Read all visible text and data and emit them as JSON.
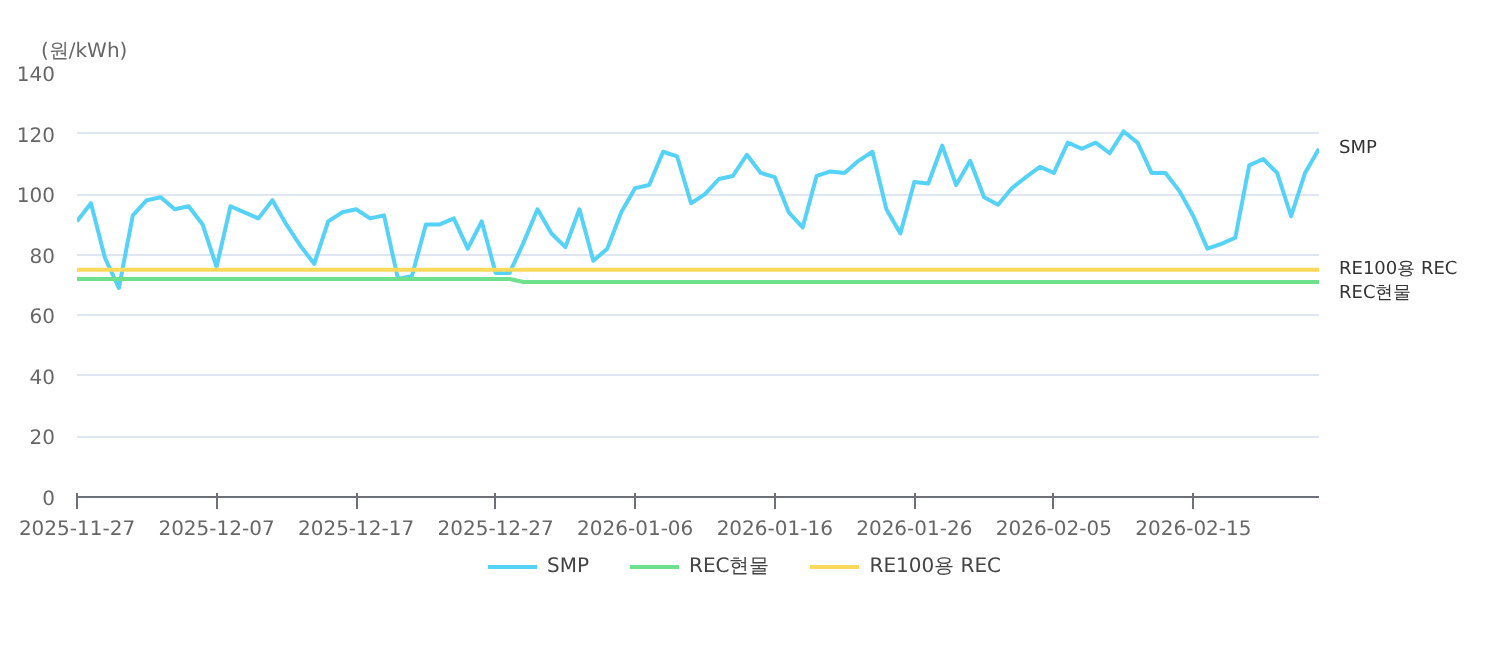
{
  "chart_data": {
    "type": "line",
    "ylabel": "(원/kWh)",
    "x": [
      "2025-11-27",
      "2025-11-28",
      "2025-11-29",
      "2025-11-30",
      "2025-12-01",
      "2025-12-02",
      "2025-12-03",
      "2025-12-04",
      "2025-12-05",
      "2025-12-06",
      "2025-12-07",
      "2025-12-08",
      "2025-12-09",
      "2025-12-10",
      "2025-12-11",
      "2025-12-12",
      "2025-12-13",
      "2025-12-14",
      "2025-12-15",
      "2025-12-16",
      "2025-12-17",
      "2025-12-18",
      "2025-12-19",
      "2025-12-20",
      "2025-12-21",
      "2025-12-22",
      "2025-12-23",
      "2025-12-24",
      "2025-12-25",
      "2025-12-26",
      "2025-12-27",
      "2025-12-28",
      "2025-12-29",
      "2025-12-30",
      "2025-12-31",
      "2026-01-01",
      "2026-01-02",
      "2026-01-03",
      "2026-01-04",
      "2026-01-05",
      "2026-01-06",
      "2026-01-07",
      "2026-01-08",
      "2026-01-09",
      "2026-01-10",
      "2026-01-11",
      "2026-01-12",
      "2026-01-13",
      "2026-01-14",
      "2026-01-15",
      "2026-01-16",
      "2026-01-17",
      "2026-01-18",
      "2026-01-19",
      "2026-01-20",
      "2026-01-21",
      "2026-01-22",
      "2026-01-23",
      "2026-01-24",
      "2026-01-25",
      "2026-01-26",
      "2026-01-27",
      "2026-01-28",
      "2026-01-29",
      "2026-01-30",
      "2026-01-31",
      "2026-02-01",
      "2026-02-02",
      "2026-02-03",
      "2026-02-04",
      "2026-02-05",
      "2026-02-06",
      "2026-02-07",
      "2026-02-08",
      "2026-02-09",
      "2026-02-10",
      "2026-02-11",
      "2026-02-12",
      "2026-02-13",
      "2026-02-14",
      "2026-02-15",
      "2026-02-16",
      "2026-02-17",
      "2026-02-18",
      "2026-02-19",
      "2026-02-20",
      "2026-02-21",
      "2026-02-22",
      "2026-02-23",
      "2026-02-24"
    ],
    "series": [
      {
        "name": "SMP",
        "color": "#55d2f7",
        "values": [
          91,
          97,
          79,
          69,
          93,
          98,
          99,
          95,
          96,
          90,
          76,
          96,
          94,
          92,
          98,
          90,
          83,
          77,
          91,
          94,
          95,
          92,
          93,
          72,
          73,
          90,
          90,
          92,
          82,
          91,
          74,
          74,
          84,
          95,
          87,
          82.5,
          95,
          78,
          82,
          94,
          102,
          103,
          114,
          112.5,
          97,
          100,
          105,
          106,
          113,
          107,
          105.6,
          94,
          89,
          106,
          107.5,
          107,
          111,
          114,
          95,
          87,
          104,
          103.5,
          116,
          103,
          111,
          99,
          96.5,
          102,
          105.6,
          109,
          107,
          117,
          115,
          117,
          113.5,
          120.7,
          117,
          107,
          107,
          101,
          92.7,
          82,
          83.6,
          85.6,
          109.5,
          111.6,
          107,
          92.7,
          107,
          115
        ]
      },
      {
        "name": "REC현물",
        "color": "#6fe08d",
        "values": [
          72,
          72,
          72,
          72,
          72,
          72,
          72,
          72,
          72,
          72,
          72,
          72,
          72,
          72,
          72,
          72,
          72,
          72,
          72,
          72,
          72,
          72,
          72,
          72,
          72,
          72,
          72,
          72,
          72,
          72,
          72,
          72,
          71,
          71,
          71,
          71,
          71,
          71,
          71,
          71,
          71,
          71,
          71,
          71,
          71,
          71,
          71,
          71,
          71,
          71,
          71,
          71,
          71,
          71,
          71,
          71,
          71,
          71,
          71,
          71,
          71,
          71,
          71,
          71,
          71,
          71,
          71,
          71,
          71,
          71,
          71,
          71,
          71,
          71,
          71,
          71,
          71,
          71,
          71,
          71,
          71,
          71,
          71,
          71,
          71,
          71,
          71,
          71,
          71,
          71
        ]
      },
      {
        "name": "RE100용 REC",
        "color": "#fad95b",
        "values": [
          75,
          75,
          75,
          75,
          75,
          75,
          75,
          75,
          75,
          75,
          75,
          75,
          75,
          75,
          75,
          75,
          75,
          75,
          75,
          75,
          75,
          75,
          75,
          75,
          75,
          75,
          75,
          75,
          75,
          75,
          75,
          75,
          75,
          75,
          75,
          75,
          75,
          75,
          75,
          75,
          75,
          75,
          75,
          75,
          75,
          75,
          75,
          75,
          75,
          75,
          75,
          75,
          75,
          75,
          75,
          75,
          75,
          75,
          75,
          75,
          75,
          75,
          75,
          75,
          75,
          75,
          75,
          75,
          75,
          75,
          75,
          75,
          75,
          75,
          75,
          75,
          75,
          75,
          75,
          75,
          75,
          75,
          75,
          75,
          75,
          75,
          75,
          75,
          75,
          75
        ]
      }
    ],
    "xlim": [
      "2025-11-27",
      "2026-02-24"
    ],
    "xticks": [
      "2025-11-27",
      "2025-12-07",
      "2025-12-17",
      "2025-12-27",
      "2026-01-06",
      "2026-01-16",
      "2026-01-26",
      "2026-02-05",
      "2026-02-15"
    ],
    "ylim": [
      0,
      140
    ],
    "yticks": [
      0,
      20,
      40,
      60,
      80,
      100,
      120,
      140
    ],
    "grid": "y",
    "legend": "bottom",
    "marker": "none",
    "line_style": "solid"
  }
}
